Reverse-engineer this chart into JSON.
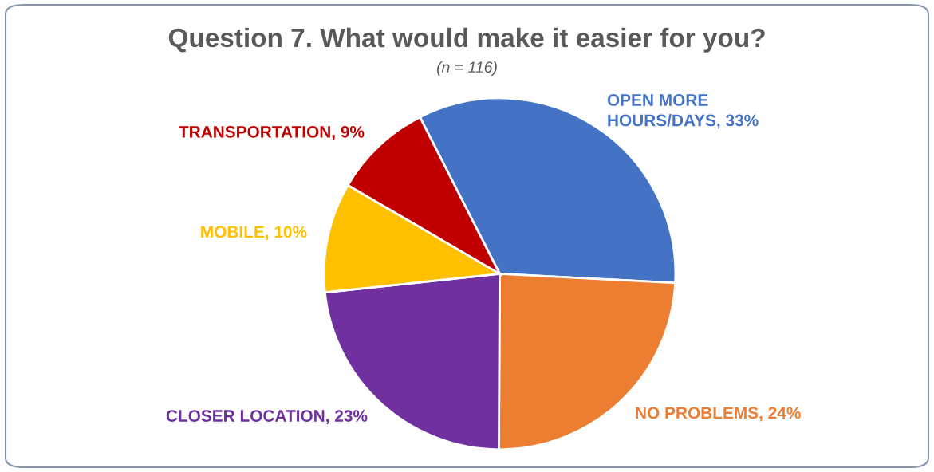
{
  "chart_data": {
    "type": "pie",
    "title": "Question 7. What would make it easier for you?",
    "subtitle": "(n = 116)",
    "categories": [
      "OPEN MORE\nHOURS/DAYS",
      "NO PROBLEMS",
      "CLOSER LOCATION",
      "MOBILE",
      "TRANSPORTATION"
    ],
    "values": [
      33,
      24,
      23,
      10,
      9
    ],
    "value_labels": [
      "33%",
      "24%",
      "23%",
      "10%",
      "9%"
    ],
    "colors": [
      "#4472c4",
      "#ed7d31",
      "#7030a0",
      "#ffc000",
      "#c00000"
    ]
  }
}
